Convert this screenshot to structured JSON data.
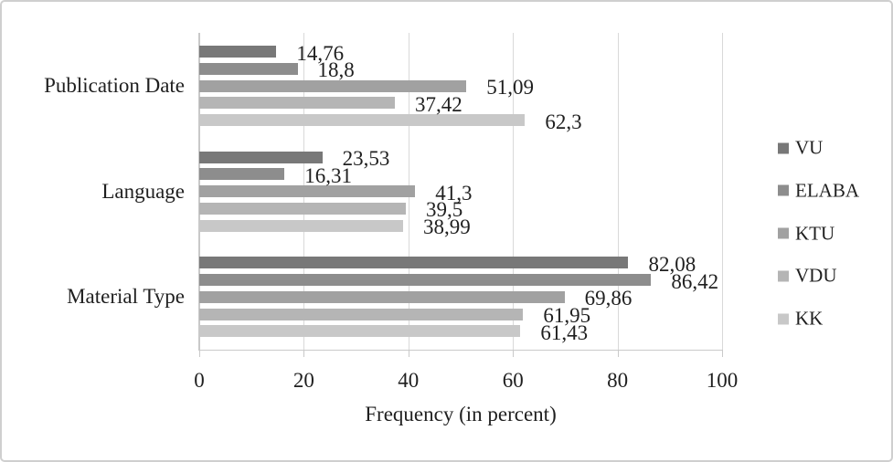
{
  "chart_data": {
    "type": "bar",
    "orientation": "horizontal",
    "title": "",
    "xlabel": "Frequency (in percent)",
    "ylabel": "",
    "categories": [
      "Publication Date",
      "Language",
      "Material Type"
    ],
    "series": [
      {
        "name": "VU",
        "color": "#787878",
        "values": [
          14.76,
          23.53,
          82.08
        ],
        "value_labels": [
          "14,76",
          "23,53",
          "82,08"
        ]
      },
      {
        "name": "ELABA",
        "color": "#8d8d8d",
        "values": [
          18.8,
          16.31,
          86.42
        ],
        "value_labels": [
          "18,8",
          "16,31",
          "86,42"
        ]
      },
      {
        "name": "KTU",
        "color": "#a1a1a1",
        "values": [
          51.09,
          41.3,
          69.86
        ],
        "value_labels": [
          "51,09",
          "41,3",
          "69,86"
        ]
      },
      {
        "name": "VDU",
        "color": "#b5b5b5",
        "values": [
          37.42,
          39.5,
          61.95
        ],
        "value_labels": [
          "37,42",
          "39,5",
          "61,95"
        ]
      },
      {
        "name": "KK",
        "color": "#c8c8c8",
        "values": [
          62.3,
          38.99,
          61.43
        ],
        "value_labels": [
          "62,3",
          "38,99",
          "61,43"
        ]
      }
    ],
    "x_ticks": [
      0,
      20,
      40,
      60,
      80,
      100
    ],
    "xlim": [
      0,
      100
    ],
    "grid": true,
    "legend_position": "right",
    "decimal_separator": ",",
    "colors": {
      "gridline": "#d9d9d9",
      "axis": "#c9c9c9",
      "text": "#1f1f1f",
      "frame_border": "#cfcfcf",
      "background": "#ffffff"
    }
  }
}
